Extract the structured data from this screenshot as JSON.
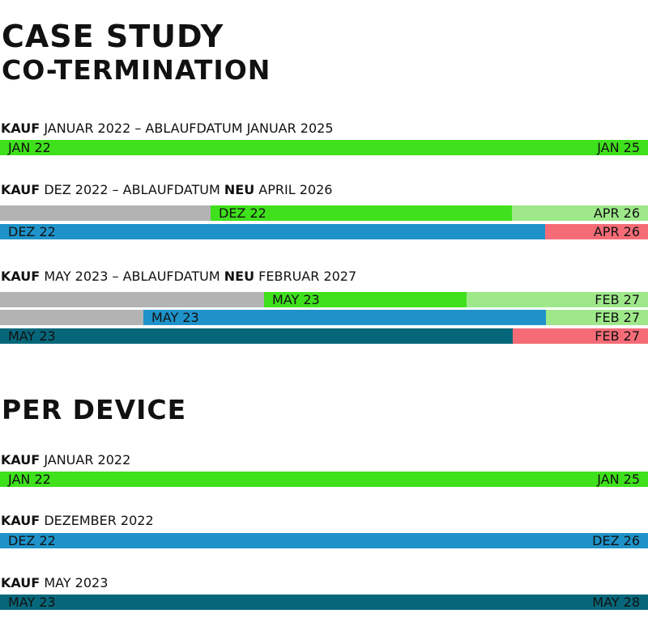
{
  "title": {
    "line1": "CASE STUDY",
    "line2": "CO-TERMINATION"
  },
  "colors": {
    "green": "#3fe01c",
    "light_green": "#9ee88a",
    "gray": "#b3b3b3",
    "blue": "#1f93c9",
    "red": "#f56c77",
    "teal": "#07677a"
  },
  "case1": {
    "kauf": "KAUF",
    "label": "JANUAR 2022 – ABLAUFDATUM JANUAR 2025",
    "bar": {
      "start": "JAN 22",
      "end": "JAN 25"
    }
  },
  "case2": {
    "kauf": "KAUF",
    "label_a": "DEZ 2022 – ABLAUFDATUM",
    "neu": "NEU",
    "label_b": "APRIL 2026",
    "bar1": {
      "start": "DEZ 22",
      "end": "APR 26"
    },
    "bar2": {
      "start": "DEZ 22",
      "end": "APR 26"
    }
  },
  "case3": {
    "kauf": "KAUF",
    "label_a": "MAY 2023 – ABLAUFDATUM",
    "neu": "NEU",
    "label_b": "FEBRUAR 2027",
    "bar1": {
      "start": "MAY 23",
      "end": "FEB 27"
    },
    "bar2": {
      "start": "MAY 23",
      "end": "FEB 27"
    },
    "bar3": {
      "start": "MAY 23",
      "end": "FEB 27"
    }
  },
  "per_device": {
    "heading": "PER DEVICE",
    "rows": [
      {
        "kauf": "KAUF",
        "label": "JANUAR 2022",
        "start": "JAN 22",
        "end": "JAN 25"
      },
      {
        "kauf": "KAUF",
        "label": "DEZEMBER 2022",
        "start": "DEZ 22",
        "end": "DEZ 26"
      },
      {
        "kauf": "KAUF",
        "label": "MAY 2023",
        "start": "MAY 23",
        "end": "MAY 28"
      }
    ]
  }
}
